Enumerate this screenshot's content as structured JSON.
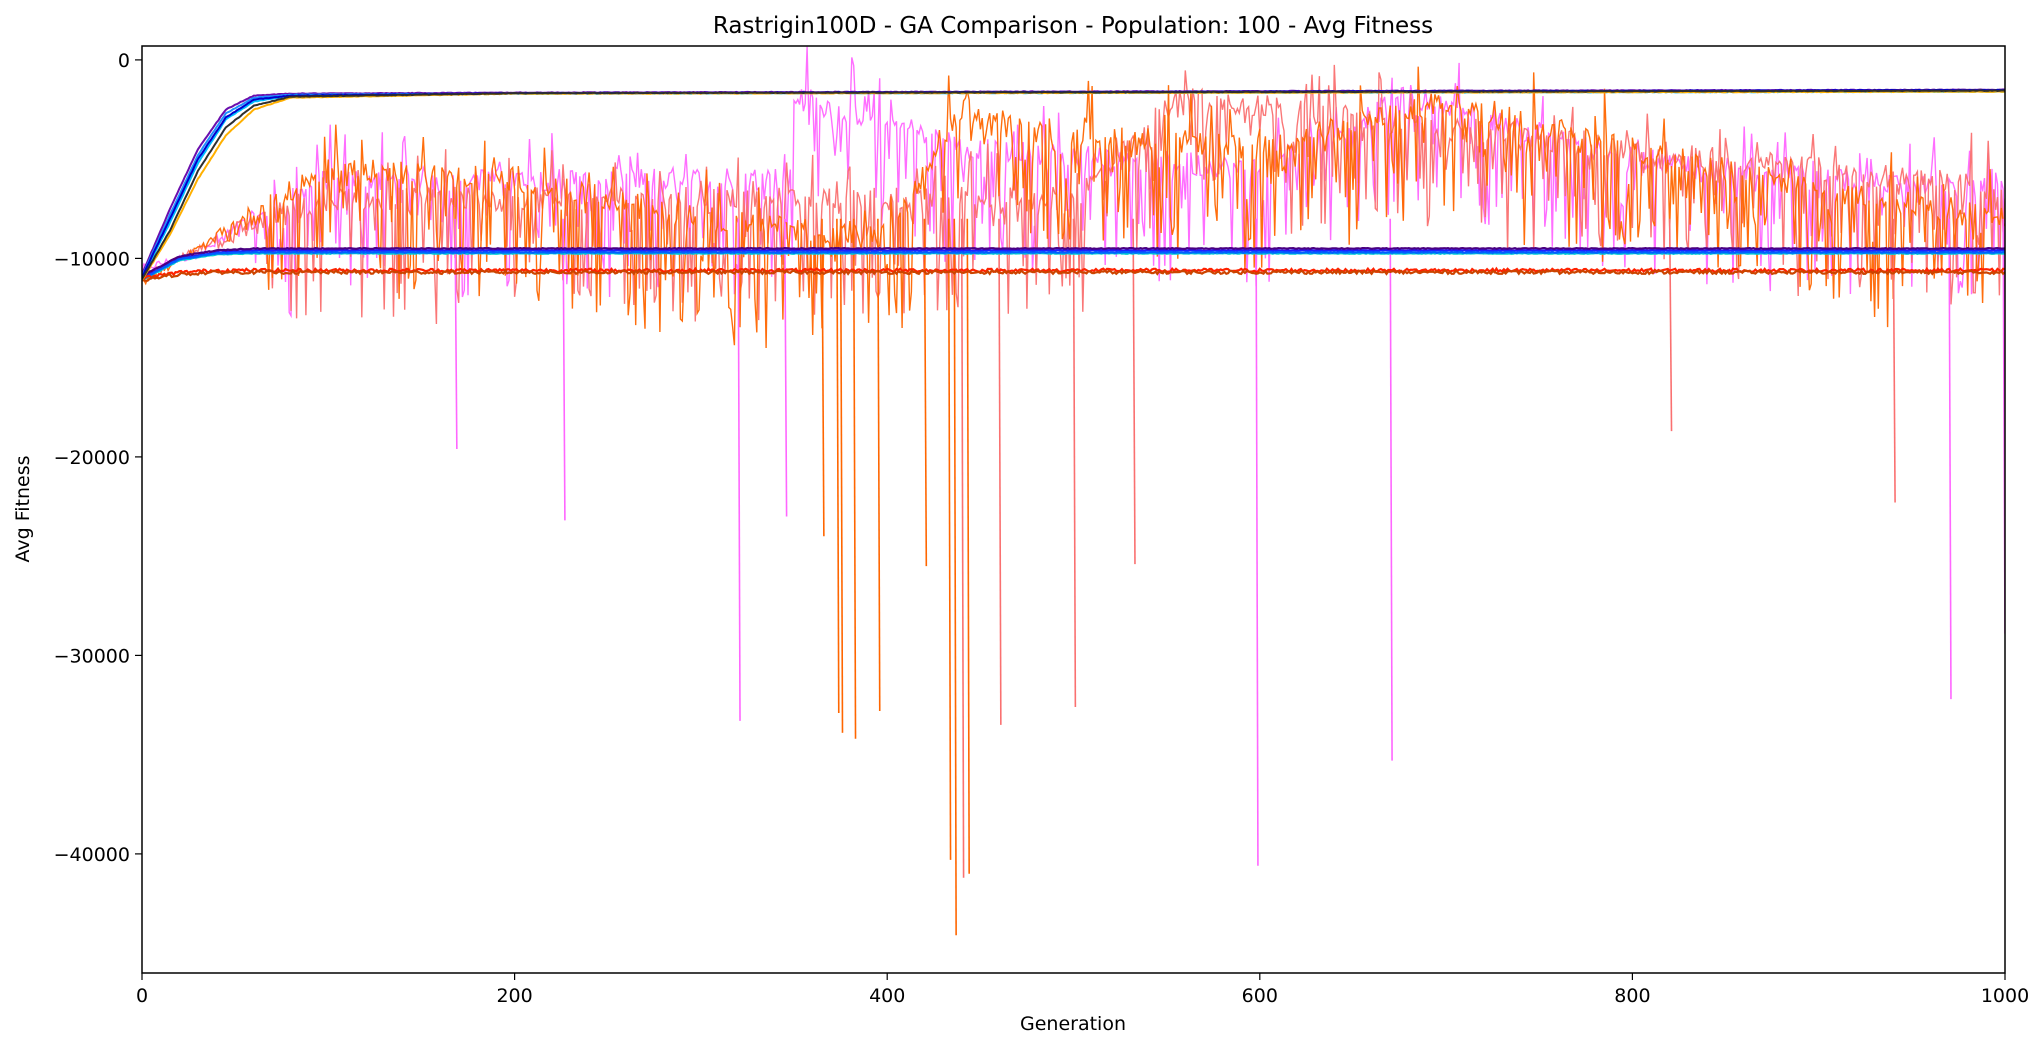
{
  "chart_data": {
    "type": "line",
    "title": "Rastrigin100D - GA Comparison - Population: 100 - Avg Fitness",
    "xlabel": "Generation",
    "ylabel": "Avg Fitness",
    "xlim": [
      0,
      1000
    ],
    "ylim": [
      -46000,
      700
    ],
    "xticks": [
      0,
      200,
      400,
      600,
      800,
      1000
    ],
    "yticks": [
      0,
      -10000,
      -20000,
      -30000,
      -40000
    ],
    "xtick_labels": [
      "0",
      "200",
      "400",
      "600",
      "800",
      "1000"
    ],
    "ytick_labels": [
      "0",
      "−10000",
      "−20000",
      "−30000",
      "−40000"
    ],
    "grid": false,
    "legend": "none",
    "series": [
      {
        "color": "#ff66ff",
        "kind": "noisy",
        "x": [
          0,
          30,
          100,
          200,
          348,
          350,
          450,
          600,
          680,
          800,
          900,
          1000
        ],
        "values": [
          -10500,
          -9800,
          -6000,
          -6000,
          -6000,
          -1800,
          -4500,
          -5500,
          -1800,
          -5000,
          -6000,
          -6500
        ]
      },
      {
        "color": "#fa7070",
        "kind": "noisy",
        "x": [
          0,
          40,
          100,
          300,
          500,
          560,
          700,
          850,
          1000
        ],
        "values": [
          -11000,
          -9000,
          -7000,
          -7000,
          -7000,
          -1800,
          -3500,
          -5000,
          -6500
        ]
      },
      {
        "color": "#ff6600",
        "kind": "noisy",
        "x": [
          0,
          40,
          100,
          200,
          300,
          400,
          444,
          450,
          600,
          700,
          800,
          900,
          1000
        ],
        "values": [
          -11200,
          -9000,
          -5500,
          -6000,
          -8000,
          -9000,
          -1900,
          -3200,
          -4500,
          -2000,
          -4500,
          -6500,
          -8000
        ]
      },
      {
        "color": "#6a0dad",
        "kind": "smooth",
        "x": [
          0,
          15,
          30,
          45,
          60,
          80,
          200,
          1000
        ],
        "values": [
          -10800,
          -7500,
          -4500,
          -2500,
          -1800,
          -1700,
          -1650,
          -1500
        ]
      },
      {
        "color": "#1e90ff",
        "kind": "smooth",
        "x": [
          0,
          15,
          30,
          45,
          60,
          80,
          200,
          1000
        ],
        "values": [
          -10900,
          -7800,
          -4800,
          -2700,
          -1900,
          -1750,
          -1700,
          -1550
        ]
      },
      {
        "color": "#00bfff",
        "kind": "smooth",
        "x": [
          0,
          15,
          30,
          45,
          60,
          80,
          200,
          1000
        ],
        "values": [
          -11000,
          -8200,
          -5200,
          -3000,
          -2100,
          -1800,
          -1700,
          -1600
        ]
      },
      {
        "color": "#0000cd",
        "kind": "smooth",
        "x": [
          0,
          15,
          30,
          45,
          60,
          80,
          200,
          1000
        ],
        "values": [
          -10950,
          -8000,
          -5000,
          -2900,
          -2000,
          -1800,
          -1680,
          -1520
        ]
      },
      {
        "color": "#ffb000",
        "kind": "smooth",
        "x": [
          0,
          15,
          30,
          45,
          60,
          80,
          200,
          1000
        ],
        "values": [
          -11100,
          -8800,
          -6000,
          -3800,
          -2500,
          -1900,
          -1700,
          -1600
        ]
      },
      {
        "color": "#2f2f2f",
        "kind": "smooth",
        "x": [
          0,
          15,
          30,
          45,
          60,
          80,
          200,
          1000
        ],
        "values": [
          -11050,
          -8600,
          -5600,
          -3400,
          -2300,
          -1850,
          -1680,
          -1550
        ]
      },
      {
        "color": "#2020ff",
        "kind": "flat",
        "x": [
          0,
          20,
          40,
          60,
          100,
          1000
        ],
        "values": [
          -11000,
          -10000,
          -9700,
          -9600,
          -9600,
          -9600
        ]
      },
      {
        "color": "#4b0082",
        "kind": "flat",
        "x": [
          0,
          20,
          40,
          60,
          100,
          1000
        ],
        "values": [
          -10900,
          -9900,
          -9600,
          -9500,
          -9500,
          -9500
        ]
      },
      {
        "color": "#00ced1",
        "kind": "flat",
        "x": [
          0,
          20,
          40,
          60,
          100,
          1000
        ],
        "values": [
          -11100,
          -10100,
          -9800,
          -9750,
          -9750,
          -9750
        ]
      },
      {
        "color": "#0060ff",
        "kind": "flat",
        "x": [
          0,
          20,
          40,
          60,
          100,
          1000
        ],
        "values": [
          -11050,
          -10050,
          -9750,
          -9700,
          -9700,
          -9700
        ]
      },
      {
        "color": "#ff2200",
        "kind": "flat",
        "x": [
          0,
          20,
          40,
          60,
          100,
          1000
        ],
        "values": [
          -11000,
          -10700,
          -10600,
          -10600,
          -10600,
          -10600
        ]
      },
      {
        "color": "#cc4400",
        "kind": "flat",
        "x": [
          0,
          20,
          40,
          60,
          100,
          1000
        ],
        "values": [
          -11100,
          -10800,
          -10700,
          -10700,
          -10700,
          -10700
        ]
      }
    ],
    "spikes": [
      {
        "color": "#ff66ff",
        "x": 320,
        "value": -33300
      },
      {
        "color": "#ff66ff",
        "x": 598,
        "value": -40600
      },
      {
        "color": "#ff66ff",
        "x": 970,
        "value": -32200
      },
      {
        "color": "#ff66ff",
        "x": 999,
        "value": -28900
      },
      {
        "color": "#ff66ff",
        "x": 670,
        "value": -35300
      },
      {
        "color": "#ff66ff",
        "x": 226,
        "value": -23200
      },
      {
        "color": "#ff66ff",
        "x": 168,
        "value": -19600
      },
      {
        "color": "#ff66ff",
        "x": 345,
        "value": -23000
      },
      {
        "color": "#fa7070",
        "x": 440,
        "value": -41200
      },
      {
        "color": "#fa7070",
        "x": 500,
        "value": -32600
      },
      {
        "color": "#fa7070",
        "x": 460,
        "value": -33500
      },
      {
        "color": "#fa7070",
        "x": 940,
        "value": -22300
      },
      {
        "color": "#fa7070",
        "x": 820,
        "value": -18700
      },
      {
        "color": "#fa7070",
        "x": 532,
        "value": -25400
      },
      {
        "color": "#ff6600",
        "x": 436,
        "value": -44100
      },
      {
        "color": "#ff6600",
        "x": 433,
        "value": -40300
      },
      {
        "color": "#ff6600",
        "x": 382,
        "value": -34200
      },
      {
        "color": "#ff6600",
        "x": 375,
        "value": -33900
      },
      {
        "color": "#ff6600",
        "x": 373,
        "value": -32900
      },
      {
        "color": "#ff6600",
        "x": 395,
        "value": -32800
      },
      {
        "color": "#ff6600",
        "x": 443,
        "value": -41000
      },
      {
        "color": "#ff6600",
        "x": 420,
        "value": -25500
      },
      {
        "color": "#ff6600",
        "x": 365,
        "value": -24000
      }
    ]
  }
}
